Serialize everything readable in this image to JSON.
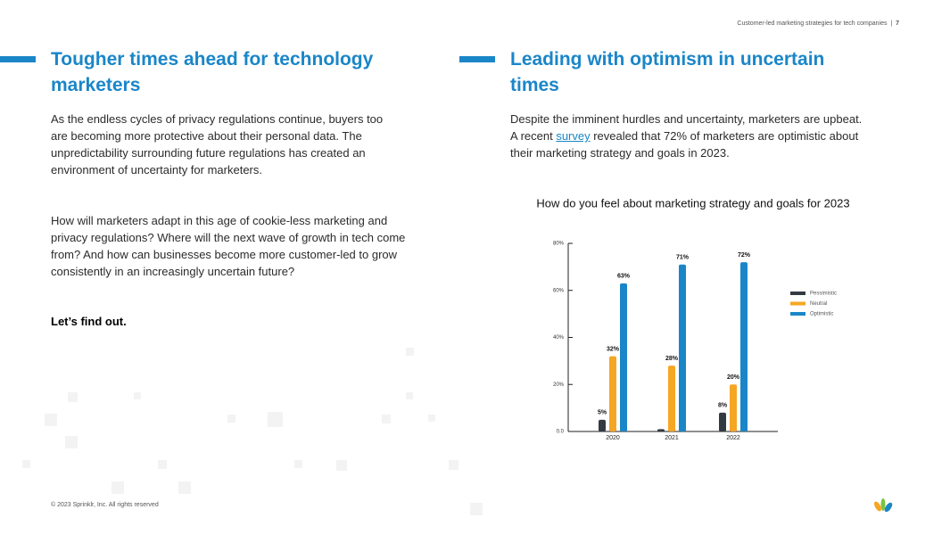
{
  "header": {
    "running_title": "Customer-led marketing strategies for tech companies",
    "page_number": "7"
  },
  "left": {
    "title": "Tougher times ahead for technology marketers",
    "paragraphs": [
      "As the endless cycles of privacy regulations continue, buyers too are becoming more protective about their personal data. The unpredictability surrounding future regulations has created an environment of uncertainty for marketers.",
      "How will marketers adapt in this age of cookie-less marketing and privacy regulations? Where will the next wave of growth in tech come from? And how can businesses become more customer-led to grow consistently in an increasingly uncertain future?"
    ],
    "closing": "Let’s find out."
  },
  "right": {
    "title": "Leading with optimism in uncertain times",
    "paragraph": {
      "before_link": "Despite the imminent hurdles and uncertainty, marketers are upbeat. A recent ",
      "link": "survey",
      "after_link": " revealed that 72% of marketers are optimistic about their marketing strategy and goals in 2023."
    }
  },
  "chart_data": {
    "type": "bar",
    "title": "How do you feel about marketing strategy and goals for 2023",
    "categories": [
      "2020",
      "2021",
      "2022"
    ],
    "series": [
      {
        "name": "Pessimistic",
        "color": "#333a42",
        "values": [
          5,
          1,
          8
        ],
        "value_labels": [
          "5%",
          null,
          "8%"
        ]
      },
      {
        "name": "Neutral",
        "color": "#f5a623",
        "values": [
          32,
          28,
          20
        ],
        "value_labels": [
          "32%",
          "28%",
          "20%"
        ]
      },
      {
        "name": "Optimistic",
        "color": "#1a86c8",
        "values": [
          63,
          71,
          72
        ],
        "value_labels": [
          "63%",
          "71%",
          "72%"
        ]
      }
    ],
    "ylim": [
      0,
      80
    ],
    "yticks": [
      {
        "value": 0,
        "label": "0.0"
      },
      {
        "value": 20,
        "label": "20%"
      },
      {
        "value": 40,
        "label": "40%"
      },
      {
        "value": 60,
        "label": "60%"
      },
      {
        "value": 80,
        "label": "80%"
      }
    ],
    "legend": "right"
  },
  "footer": {
    "copyright": "© 2023 Sprinklr, Inc. All rights reserved"
  }
}
